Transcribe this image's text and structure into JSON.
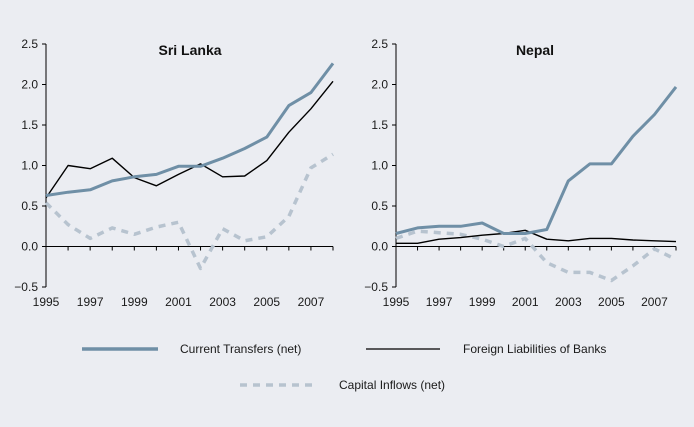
{
  "chart_data": [
    {
      "type": "line",
      "title": "Sri Lanka",
      "x": [
        1995,
        1996,
        1997,
        1998,
        1999,
        2000,
        2001,
        2002,
        2003,
        2004,
        2005,
        2006,
        2007,
        2008
      ],
      "xticks": [
        "1995",
        "1997",
        "1999",
        "2001",
        "2003",
        "2005",
        "2007"
      ],
      "yticks": [
        "2.5",
        "2.0",
        "1.5",
        "1.0",
        "0.5",
        "0.0",
        "−0.5"
      ],
      "ylim": [
        -0.5,
        2.5
      ],
      "series": [
        {
          "name": "Current Transfers (net)",
          "values": [
            0.63,
            0.67,
            0.7,
            0.81,
            0.86,
            0.89,
            0.99,
            0.99,
            1.09,
            1.21,
            1.35,
            1.74,
            1.9,
            2.26
          ]
        },
        {
          "name": "Foreign Liabilities of Banks",
          "values": [
            0.6,
            1.0,
            0.96,
            1.09,
            0.85,
            0.75,
            0.89,
            1.02,
            0.86,
            0.87,
            1.06,
            1.41,
            1.7,
            2.04
          ]
        },
        {
          "name": "Capital Inflows (net)",
          "values": [
            0.54,
            0.27,
            0.1,
            0.23,
            0.15,
            0.24,
            0.3,
            -0.27,
            0.22,
            0.07,
            0.12,
            0.37,
            0.97,
            1.14
          ]
        }
      ]
    },
    {
      "type": "line",
      "title": "Nepal",
      "x": [
        1995,
        1996,
        1997,
        1998,
        1999,
        2000,
        2001,
        2002,
        2003,
        2004,
        2005,
        2006,
        2007,
        2008
      ],
      "xticks": [
        "1995",
        "1997",
        "1999",
        "2001",
        "2003",
        "2005",
        "2007"
      ],
      "yticks": [
        "2.5",
        "2.0",
        "1.5",
        "1.0",
        "0.5",
        "0.0",
        "−0.5"
      ],
      "ylim": [
        -0.5,
        2.5
      ],
      "series": [
        {
          "name": "Current Transfers (net)",
          "values": [
            0.16,
            0.23,
            0.25,
            0.25,
            0.29,
            0.16,
            0.16,
            0.21,
            0.81,
            1.02,
            1.02,
            1.36,
            1.63,
            1.97
          ]
        },
        {
          "name": "Foreign Liabilities of Banks",
          "values": [
            0.04,
            0.04,
            0.09,
            0.11,
            0.14,
            0.16,
            0.2,
            0.09,
            0.07,
            0.1,
            0.1,
            0.08,
            0.07,
            0.06
          ]
        },
        {
          "name": "Capital Inflows (net)",
          "values": [
            0.1,
            0.19,
            0.17,
            0.15,
            0.09,
            0.0,
            0.1,
            -0.2,
            -0.32,
            -0.32,
            -0.42,
            -0.24,
            -0.03,
            -0.16
          ]
        }
      ]
    }
  ],
  "legend": {
    "items": [
      {
        "label": "Current Transfers (net)",
        "color": "#6f8fa6",
        "style": "solid-thick"
      },
      {
        "label": "Foreign Liabilities of Banks",
        "color": "#000000",
        "style": "solid-thin"
      },
      {
        "label": "Capital Inflows (net)",
        "color": "#b7c3cf",
        "style": "dashed"
      }
    ]
  },
  "colors": {
    "current_transfers": "#6f8fa6",
    "foreign_liabilities": "#000000",
    "capital_inflows": "#b7c3cf",
    "background": "#ebedf2"
  }
}
